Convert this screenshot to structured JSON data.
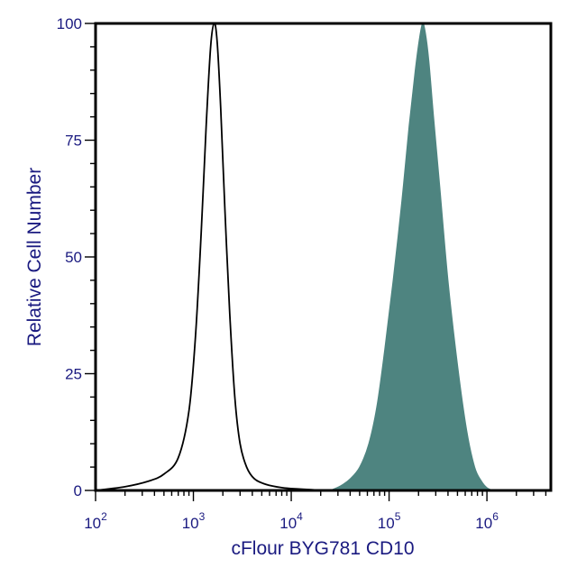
{
  "chart_data": {
    "type": "area",
    "title": "",
    "xlabel": "cFlour BYG781 CD10",
    "ylabel": "Relative Cell Number",
    "x_scale": "log",
    "xlim": [
      100,
      4500000
    ],
    "ylim": [
      0,
      100
    ],
    "x_ticks": [
      {
        "value": 100,
        "base": "10",
        "exp": "2"
      },
      {
        "value": 1000,
        "base": "10",
        "exp": "3"
      },
      {
        "value": 10000,
        "base": "10",
        "exp": "4"
      },
      {
        "value": 100000,
        "base": "10",
        "exp": "5"
      },
      {
        "value": 1000000,
        "base": "10",
        "exp": "6"
      }
    ],
    "y_ticks": [
      0,
      25,
      50,
      75,
      100
    ],
    "grid": false,
    "legend": "none",
    "series": [
      {
        "style": "outline",
        "color": "#000000",
        "x": [
          100,
          200,
          350,
          500,
          700,
          900,
          1050,
          1200,
          1350,
          1500,
          1630,
          1750,
          1900,
          2100,
          2350,
          2650,
          3000,
          3500,
          4200,
          5500,
          8000,
          12000,
          18000,
          25000
        ],
        "y": [
          0,
          0.8,
          2,
          3.5,
          7,
          17,
          33,
          55,
          78,
          95,
          100,
          96,
          82,
          60,
          38,
          20,
          10,
          5,
          2.5,
          1.3,
          0.6,
          0.3,
          0.1,
          0
        ]
      },
      {
        "style": "filled",
        "color": "#4e8480",
        "x": [
          25000,
          32000,
          40000,
          50000,
          62000,
          75000,
          90000,
          110000,
          135000,
          160000,
          185000,
          205000,
          220000,
          235000,
          255000,
          285000,
          330000,
          400000,
          500000,
          620000,
          750000,
          880000,
          1000000,
          1150000
        ],
        "y": [
          0,
          1,
          2.5,
          5,
          10,
          18,
          30,
          45,
          62,
          78,
          90,
          97,
          100,
          98,
          92,
          80,
          65,
          45,
          27,
          13,
          5,
          2,
          0.6,
          0
        ]
      }
    ]
  }
}
